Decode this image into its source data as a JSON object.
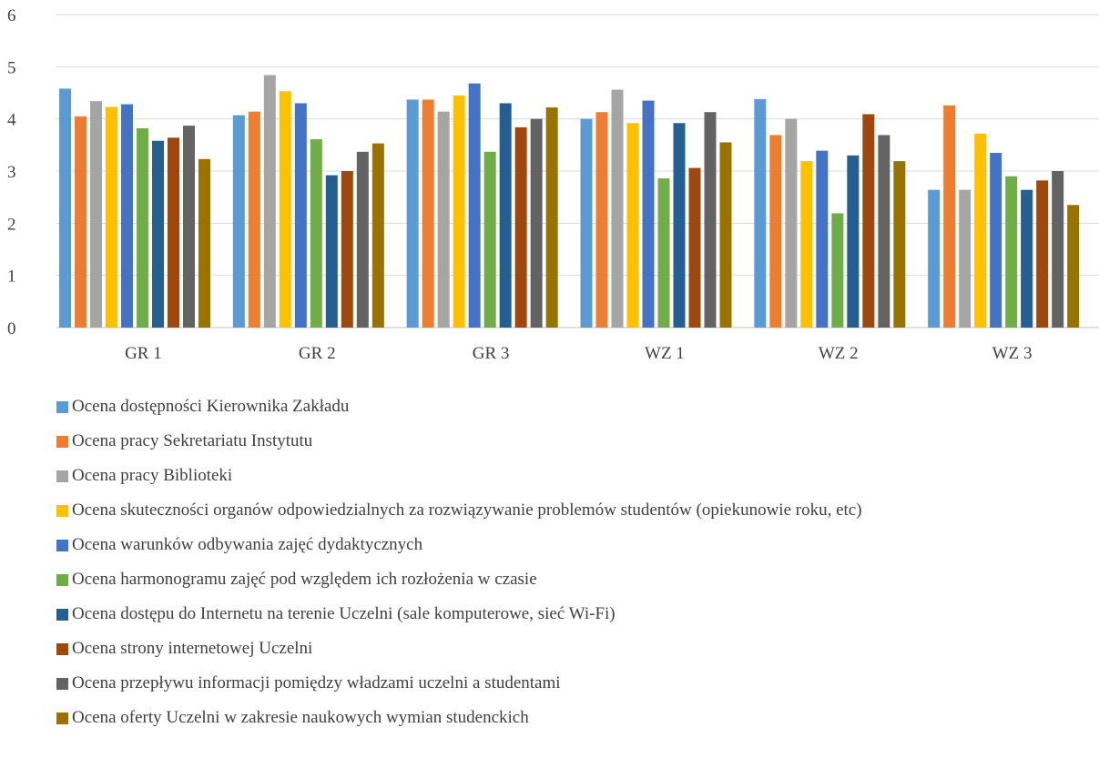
{
  "chart_data": {
    "type": "bar",
    "title": "",
    "xlabel": "",
    "ylabel": "",
    "ylim": [
      0,
      6
    ],
    "yticks": [
      0,
      1,
      2,
      3,
      4,
      5,
      6
    ],
    "grid": true,
    "legend_position": "bottom",
    "categories": [
      "GR 1",
      "GR 2",
      "GR 3",
      "WZ 1",
      "WZ 2",
      "WZ 3"
    ],
    "series": [
      {
        "name": "Ocena dostępności Kierownika Zakładu",
        "color": "#5B9BD5",
        "values": [
          4.58,
          4.07,
          4.37,
          4.0,
          4.38,
          2.64
        ]
      },
      {
        "name": "Ocena pracy Sekretariatu Instytutu",
        "color": "#ED7D31",
        "values": [
          4.05,
          4.14,
          4.37,
          4.13,
          3.69,
          4.26
        ]
      },
      {
        "name": "Ocena pracy Biblioteki",
        "color": "#A5A5A5",
        "values": [
          4.34,
          4.84,
          4.14,
          4.56,
          4.0,
          2.64
        ]
      },
      {
        "name": "Ocena skuteczności organów odpowiedzialnych za rozwiązywanie problemów studentów (opiekunowie roku, etc)",
        "color": "#FFC000",
        "values": [
          4.23,
          4.53,
          4.45,
          3.92,
          3.19,
          3.72
        ]
      },
      {
        "name": "Ocena warunków odbywania zajęć dydaktycznych",
        "color": "#4472C4",
        "values": [
          4.28,
          4.3,
          4.68,
          4.35,
          3.39,
          3.35
        ]
      },
      {
        "name": "Ocena harmonogramu zajęć pod względem ich rozłożenia w czasie",
        "color": "#70AD47",
        "values": [
          3.82,
          3.61,
          3.37,
          2.86,
          2.19,
          2.9
        ]
      },
      {
        "name": "Ocena dostępu do Internetu na terenie Uczelni (sale komputerowe, sieć Wi-Fi)",
        "color": "#255E91",
        "values": [
          3.58,
          2.92,
          4.3,
          3.92,
          3.3,
          2.64
        ]
      },
      {
        "name": "Ocena strony internetowej Uczelni",
        "color": "#9E480E",
        "values": [
          3.64,
          3.0,
          3.84,
          3.06,
          4.09,
          2.82
        ]
      },
      {
        "name": "Ocena przepływu informacji pomiędzy władzami uczelni a studentami",
        "color": "#636363",
        "values": [
          3.87,
          3.37,
          4.0,
          4.13,
          3.69,
          3.0
        ]
      },
      {
        "name": "Ocena oferty Uczelni w zakresie naukowych wymian studenckich",
        "color": "#997300",
        "values": [
          3.23,
          3.53,
          4.22,
          3.55,
          3.19,
          2.35
        ]
      }
    ]
  }
}
